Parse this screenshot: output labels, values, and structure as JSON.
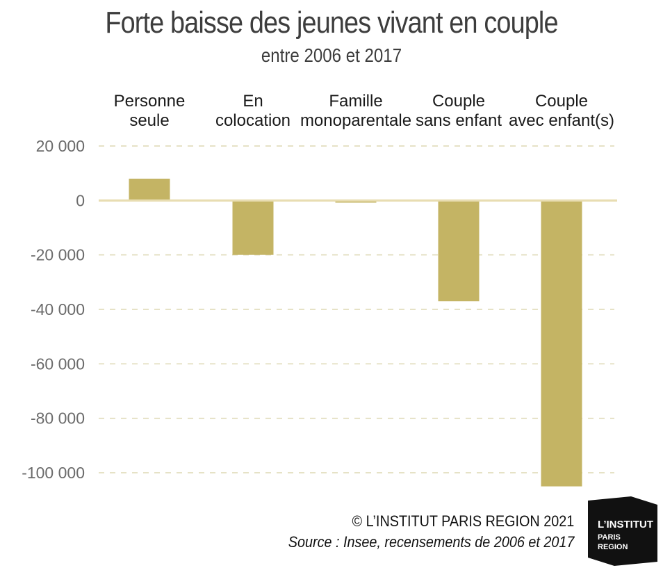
{
  "header": {
    "title": "Forte baisse des jeunes vivant en couple",
    "subtitle": "entre 2006 et 2017"
  },
  "footer": {
    "copyright": "© L’INSTITUT PARIS REGION 2021",
    "source": "Source : Insee, recensements de 2006 et 2017"
  },
  "logo": {
    "line1": "L’INSTITUT",
    "line2": "PARIS",
    "line3": "REGION"
  },
  "colors": {
    "bar": "#c4b464",
    "grid": "#ddd8b4",
    "zero_line": "#e8ddb2",
    "logo_bg": "#111111"
  },
  "chart_data": {
    "type": "bar",
    "categories": [
      [
        "Personne",
        "seule"
      ],
      [
        "En",
        "colocation"
      ],
      [
        "Famille",
        "monoparentale"
      ],
      [
        "Couple",
        "sans enfant"
      ],
      [
        "Couple",
        "avec enfant(s)"
      ]
    ],
    "values": [
      8000,
      -20000,
      -800,
      -37000,
      -105000
    ],
    "ylim": [
      -100000,
      20000
    ],
    "yticks": [
      20000,
      0,
      -20000,
      -40000,
      -60000,
      -80000,
      -100000
    ],
    "ytick_labels": [
      "20 000",
      "0",
      "-20 000",
      "-40 000",
      "-60 000",
      "-80 000",
      "-100 000"
    ],
    "grid": true,
    "category_labels_position": "top"
  }
}
